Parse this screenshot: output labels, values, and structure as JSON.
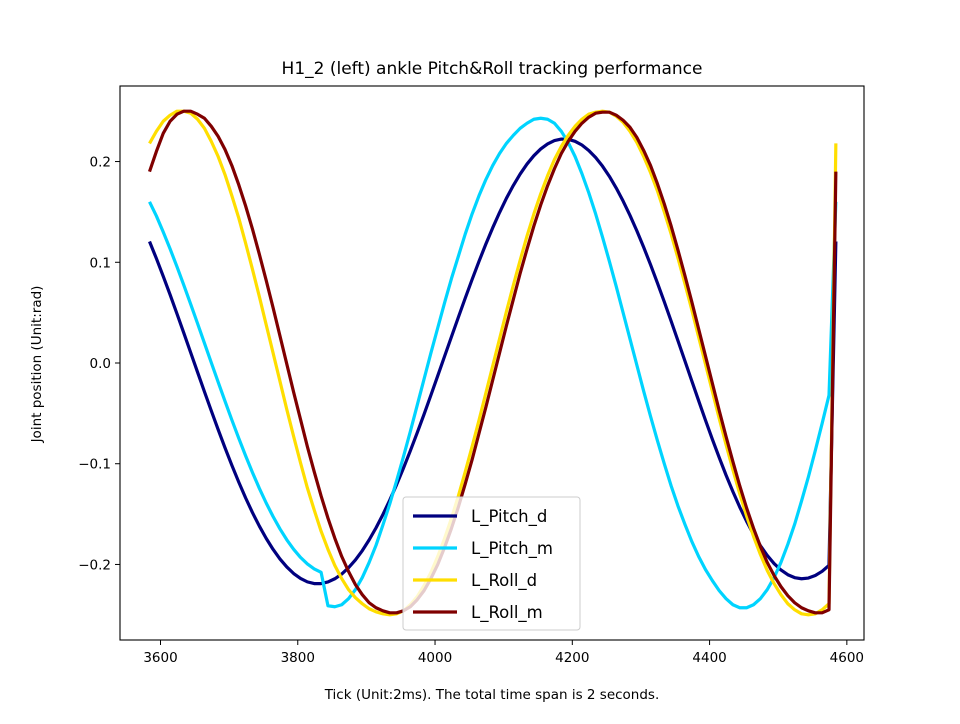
{
  "chart_data": {
    "type": "line",
    "title": "H1_2 (left) ankle Pitch&Roll tracking performance",
    "xlabel": "Tick (Unit:2ms). The total time span is 2 seconds.",
    "ylabel": "Joint position (Unit:rad)",
    "xlim": [
      3541,
      4625
    ],
    "ylim": [
      -0.275,
      0.275
    ],
    "xticks": [
      3600,
      3800,
      4000,
      4200,
      4400,
      4600
    ],
    "xtick_labels": [
      "3600",
      "3800",
      "4000",
      "4200",
      "4400",
      "4600"
    ],
    "yticks": [
      -0.2,
      -0.1,
      0.0,
      0.1,
      0.2
    ],
    "ytick_labels": [
      "−0.2",
      "−0.1",
      "0.0",
      "0.1",
      "0.2"
    ],
    "x_start": 3584,
    "x_end": 4584,
    "x_step": 10,
    "grid": false,
    "legend_position": "lower center",
    "series": [
      {
        "name": "L_Pitch_d",
        "color": "#00007f",
        "values": [
          0.1206,
          0.1038,
          0.0861,
          0.0678,
          0.0489,
          0.0297,
          0.0103,
          -0.0091,
          -0.0284,
          -0.0474,
          -0.0661,
          -0.0842,
          -0.1016,
          -0.1182,
          -0.1339,
          -0.1485,
          -0.1619,
          -0.1741,
          -0.185,
          -0.1945,
          -0.2025,
          -0.209,
          -0.2139,
          -0.2173,
          -0.219,
          -0.219,
          -0.2174,
          -0.2142,
          -0.2095,
          -0.2032,
          -0.1955,
          -0.1863,
          -0.1756,
          -0.1637,
          -0.1505,
          -0.1362,
          -0.1208,
          -0.1044,
          -0.0872,
          -0.0693,
          -0.0509,
          -0.0319,
          -0.0126,
          0.0068,
          0.0262,
          0.0454,
          0.0644,
          0.0829,
          0.1008,
          0.118,
          0.1342,
          0.1494,
          0.1635,
          0.1762,
          0.1876,
          0.1975,
          0.2058,
          0.2125,
          0.2175,
          0.2208,
          0.2223,
          0.2221,
          0.2201,
          0.2164,
          0.211,
          0.204,
          0.1954,
          0.1853,
          0.1737,
          0.1608,
          0.1466,
          0.1313,
          0.1149,
          0.0976,
          0.0795,
          0.0608,
          0.0416,
          0.022,
          0.0022,
          -0.0176,
          -0.0373,
          -0.0567,
          -0.0756,
          -0.0938,
          -0.1113,
          -0.1277,
          -0.1431,
          -0.1572,
          -0.17,
          -0.1813,
          -0.191,
          -0.1991,
          -0.2055,
          -0.2102,
          -0.2131,
          -0.2142,
          -0.2135,
          -0.211,
          -0.2068,
          -0.2009,
          0.1206
        ]
      },
      {
        "name": "L_Pitch_m",
        "color": "#00d4ff",
        "values": [
          0.16,
          0.146,
          0.1301,
          0.1133,
          0.0956,
          0.0773,
          0.0584,
          0.0392,
          0.0198,
          0.0004,
          -0.0189,
          -0.0379,
          -0.0566,
          -0.0747,
          -0.0921,
          -0.1087,
          -0.1244,
          -0.139,
          -0.1524,
          -0.1646,
          -0.1755,
          -0.185,
          -0.193,
          -0.1995,
          -0.2044,
          -0.2078,
          -0.241,
          -0.242,
          -0.24,
          -0.234,
          -0.225,
          -0.213,
          -0.198,
          -0.181,
          -0.161,
          -0.14,
          -0.117,
          -0.093,
          -0.068,
          -0.042,
          -0.016,
          0.01,
          0.035,
          0.06,
          0.084,
          0.106,
          0.128,
          0.148,
          0.166,
          0.182,
          0.196,
          0.208,
          0.218,
          0.226,
          0.233,
          0.238,
          0.242,
          0.243,
          0.242,
          0.238,
          0.23,
          0.219,
          0.205,
          0.188,
          0.169,
          0.148,
          0.125,
          0.101,
          0.076,
          0.05,
          0.024,
          -0.002,
          -0.028,
          -0.053,
          -0.077,
          -0.1,
          -0.122,
          -0.142,
          -0.16,
          -0.177,
          -0.192,
          -0.205,
          -0.216,
          -0.226,
          -0.234,
          -0.24,
          -0.243,
          -0.243,
          -0.24,
          -0.234,
          -0.225,
          -0.213,
          -0.198,
          -0.18,
          -0.16,
          -0.137,
          -0.113,
          -0.087,
          -0.06,
          -0.032,
          0.16
        ]
      },
      {
        "name": "L_Roll_d",
        "color": "#ffde00",
        "values": [
          0.218,
          0.23,
          0.24,
          0.246,
          0.25,
          0.25,
          0.248,
          0.242,
          0.233,
          0.22,
          0.205,
          0.187,
          0.166,
          0.144,
          0.119,
          0.093,
          0.066,
          0.038,
          0.01,
          -0.018,
          -0.046,
          -0.073,
          -0.099,
          -0.124,
          -0.146,
          -0.167,
          -0.185,
          -0.201,
          -0.214,
          -0.225,
          -0.233,
          -0.239,
          -0.244,
          -0.247,
          -0.249,
          -0.25,
          -0.249,
          -0.246,
          -0.24,
          -0.232,
          -0.221,
          -0.208,
          -0.192,
          -0.174,
          -0.154,
          -0.132,
          -0.108,
          -0.083,
          -0.057,
          -0.03,
          -0.003,
          0.024,
          0.051,
          0.077,
          0.102,
          0.126,
          0.148,
          0.168,
          0.186,
          0.202,
          0.215,
          0.226,
          0.235,
          0.242,
          0.247,
          0.249,
          0.25,
          0.249,
          0.245,
          0.239,
          0.23,
          0.219,
          0.205,
          0.189,
          0.171,
          0.15,
          0.128,
          0.104,
          0.079,
          0.053,
          0.026,
          -0.001,
          -0.028,
          -0.055,
          -0.081,
          -0.106,
          -0.13,
          -0.152,
          -0.172,
          -0.19,
          -0.206,
          -0.219,
          -0.23,
          -0.239,
          -0.245,
          -0.249,
          -0.25,
          -0.249,
          -0.245,
          -0.239,
          0.218
        ]
      },
      {
        "name": "L_Roll_m",
        "color": "#7f0000",
        "values": [
          0.19,
          0.21,
          0.228,
          0.24,
          0.247,
          0.25,
          0.25,
          0.247,
          0.243,
          0.235,
          0.225,
          0.212,
          0.196,
          0.177,
          0.156,
          0.133,
          0.108,
          0.082,
          0.055,
          0.027,
          -0.001,
          -0.029,
          -0.056,
          -0.083,
          -0.108,
          -0.132,
          -0.154,
          -0.174,
          -0.192,
          -0.207,
          -0.22,
          -0.23,
          -0.238,
          -0.243,
          -0.246,
          -0.248,
          -0.248,
          -0.246,
          -0.242,
          -0.235,
          -0.226,
          -0.214,
          -0.2,
          -0.183,
          -0.164,
          -0.143,
          -0.12,
          -0.096,
          -0.07,
          -0.044,
          -0.017,
          0.01,
          0.037,
          0.063,
          0.089,
          0.113,
          0.136,
          0.157,
          0.176,
          0.193,
          0.208,
          0.22,
          0.23,
          0.238,
          0.244,
          0.248,
          0.249,
          0.249,
          0.246,
          0.241,
          0.234,
          0.224,
          0.211,
          0.196,
          0.178,
          0.158,
          0.136,
          0.112,
          0.087,
          0.061,
          0.034,
          0.007,
          -0.02,
          -0.047,
          -0.073,
          -0.098,
          -0.122,
          -0.144,
          -0.164,
          -0.182,
          -0.198,
          -0.211,
          -0.222,
          -0.231,
          -0.238,
          -0.243,
          -0.246,
          -0.248,
          -0.248,
          -0.245,
          0.19
        ]
      }
    ]
  }
}
